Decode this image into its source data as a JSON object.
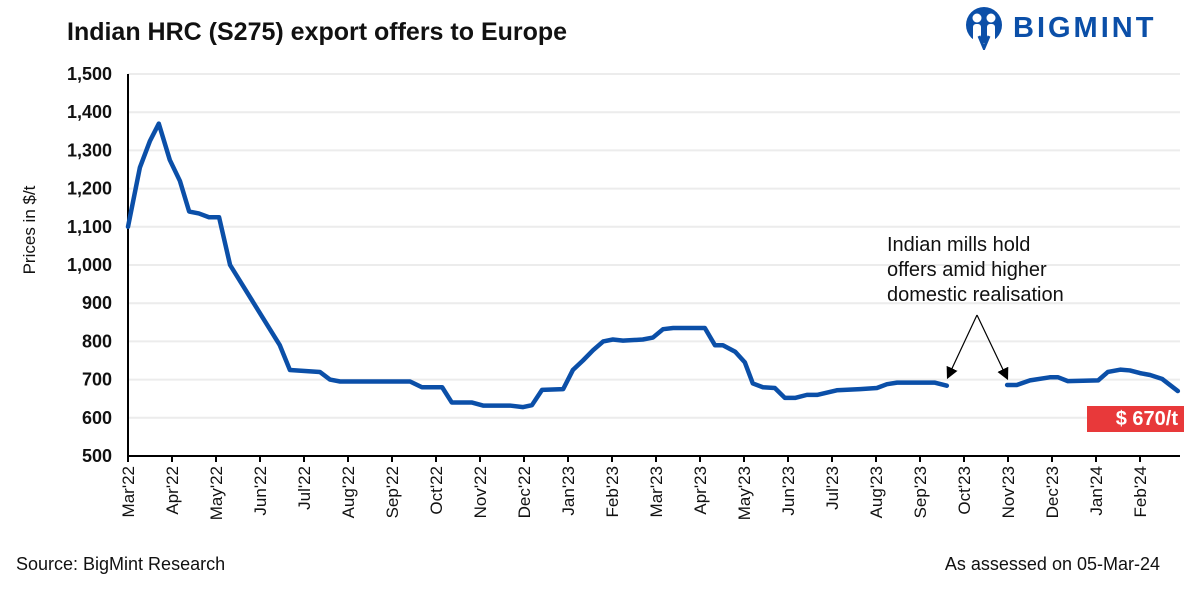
{
  "chart_data": {
    "type": "line",
    "title": "Indian HRC (S275) export offers to Europe",
    "ylabel": "Prices in $/t",
    "xlabel": "",
    "ylim": [
      500,
      1500
    ],
    "yticks": [
      500,
      600,
      700,
      800,
      900,
      1000,
      1100,
      1200,
      1300,
      1400,
      1500
    ],
    "ytick_labels": [
      "500",
      "600",
      "700",
      "800",
      "900",
      "1,000",
      "1,100",
      "1,200",
      "1,300",
      "1,400",
      "1,500"
    ],
    "categories": [
      "Mar'22",
      "Apr'22",
      "May'22",
      "Jun'22",
      "Jul'22",
      "Aug'22",
      "Sep'22",
      "Oct'22",
      "Nov'22",
      "Dec'22",
      "Jan'23",
      "Feb'23",
      "Mar'23",
      "Apr'23",
      "May'23",
      "Jun'23",
      "Jul'23",
      "Aug'23",
      "Sep'23",
      "Oct'23",
      "Nov'23",
      "Dec'23",
      "Jan'24",
      "Feb'24"
    ],
    "grid": true,
    "series": [
      {
        "name": "Indian HRC (S275) export offer",
        "color": "#0b4fa8",
        "segments": [
          [
            [
              0,
              1100
            ],
            [
              0.27,
              1255
            ],
            [
              0.5,
              1325
            ],
            [
              0.7,
              1370
            ],
            [
              0.95,
              1275
            ],
            [
              1.18,
              1220
            ],
            [
              1.39,
              1140
            ],
            [
              1.61,
              1135
            ],
            [
              1.84,
              1125
            ],
            [
              2.07,
              1125
            ],
            [
              2.32,
              1000
            ],
            [
              3.45,
              790
            ],
            [
              3.68,
              725
            ],
            [
              4.36,
              720
            ],
            [
              4.59,
              700
            ],
            [
              4.82,
              695
            ],
            [
              6.41,
              695
            ],
            [
              6.68,
              680
            ],
            [
              7.14,
              680
            ],
            [
              7.36,
              640
            ],
            [
              7.82,
              640
            ],
            [
              8.07,
              632
            ],
            [
              8.68,
              632
            ],
            [
              8.98,
              628
            ],
            [
              9.18,
              633
            ],
            [
              9.41,
              673
            ],
            [
              9.89,
              675
            ],
            [
              10.11,
              725
            ],
            [
              10.34,
              750
            ],
            [
              10.57,
              777
            ],
            [
              10.8,
              800
            ],
            [
              11.02,
              805
            ],
            [
              11.25,
              802
            ],
            [
              11.7,
              805
            ],
            [
              11.93,
              810
            ],
            [
              12.16,
              832
            ],
            [
              12.39,
              835
            ],
            [
              13.11,
              835
            ],
            [
              13.34,
              790
            ],
            [
              13.52,
              790
            ],
            [
              13.8,
              773
            ],
            [
              14.02,
              745
            ],
            [
              14.2,
              690
            ],
            [
              14.43,
              680
            ],
            [
              14.7,
              678
            ],
            [
              14.93,
              652
            ],
            [
              15.16,
              652
            ],
            [
              15.43,
              660
            ],
            [
              15.66,
              660
            ],
            [
              16.11,
              672
            ],
            [
              16.64,
              675
            ],
            [
              17.02,
              678
            ],
            [
              17.25,
              688
            ],
            [
              17.48,
              692
            ],
            [
              18.34,
              692
            ],
            [
              18.61,
              684
            ]
          ],
          [
            [
              19.98,
              686
            ],
            [
              20.2,
              686
            ],
            [
              20.5,
              698
            ],
            [
              20.95,
              706
            ],
            [
              21.14,
              706
            ],
            [
              21.36,
              696
            ],
            [
              22.05,
              698
            ],
            [
              22.27,
              720
            ],
            [
              22.55,
              726
            ],
            [
              22.77,
              724
            ],
            [
              23.0,
              717
            ],
            [
              23.23,
              712
            ],
            [
              23.5,
              702
            ],
            [
              23.86,
              670
            ]
          ]
        ]
      }
    ],
    "annotation": {
      "lines": [
        "Indian mills hold",
        "offers amid higher",
        "domestic realisation"
      ]
    },
    "latest_label": "$ 670/t",
    "latest_value": 670
  },
  "brand": {
    "name": "BIGMINT",
    "color": "#0b4fa8"
  },
  "footer": {
    "source": "Source: BigMint Research",
    "assessed": "As assessed on 05-Mar-24"
  }
}
